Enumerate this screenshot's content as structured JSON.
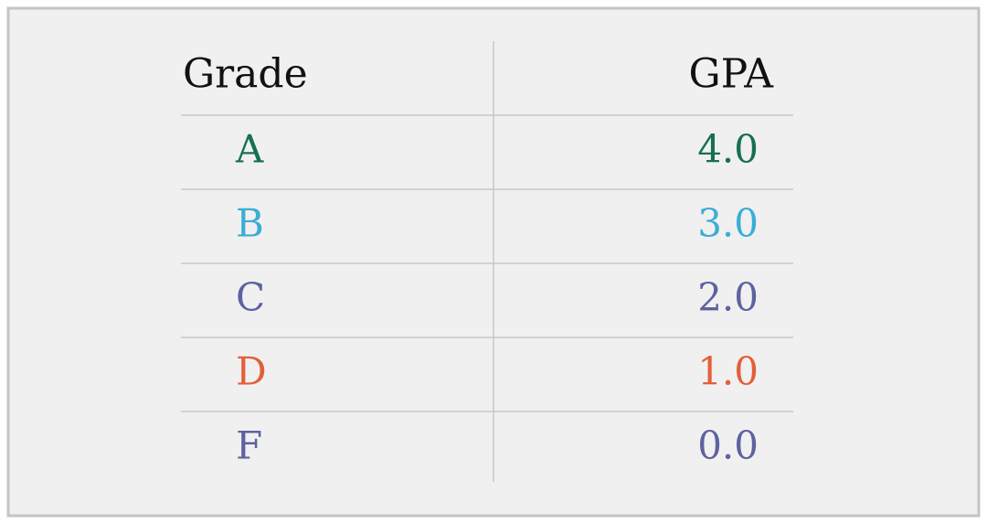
{
  "table": {
    "header": [
      "Grade",
      "GPA"
    ],
    "rows": [
      {
        "cells": [
          "A",
          "4.0"
        ],
        "color": "#17704f"
      },
      {
        "cells": [
          "B",
          "3.0"
        ],
        "color": "#3badd6"
      },
      {
        "cells": [
          "C",
          "2.0"
        ],
        "color": "#5d62a0"
      },
      {
        "cells": [
          "D",
          "1.0"
        ],
        "color": "#e2603a"
      },
      {
        "cells": [
          "F",
          "0.0"
        ],
        "color": "#5d62a0"
      }
    ]
  }
}
